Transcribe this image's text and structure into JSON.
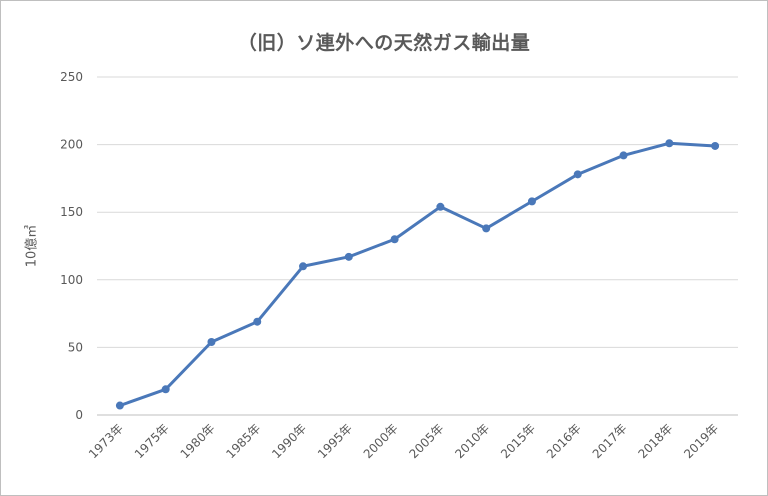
{
  "chart_data": {
    "type": "line",
    "title": "（旧）ソ連外への天然ガス輸出量",
    "xlabel": "",
    "ylabel": "10億㎥",
    "categories": [
      "1973年",
      "1975年",
      "1980年",
      "1985年",
      "1990年",
      "1995年",
      "2000年",
      "2005年",
      "2010年",
      "2015年",
      "2016年",
      "2017年",
      "2018年",
      "2019年"
    ],
    "series": [
      {
        "name": "",
        "values": [
          7,
          19,
          54,
          69,
          110,
          117,
          130,
          154,
          138,
          158,
          178,
          192,
          201,
          199
        ]
      }
    ],
    "ylim": [
      0,
      250
    ],
    "yticks": [
      0,
      50,
      100,
      150,
      200,
      250
    ],
    "grid": true,
    "colors": {
      "line": "#4a78b9",
      "grid": "#d9d9d9",
      "axis": "#bfbfbf"
    }
  }
}
